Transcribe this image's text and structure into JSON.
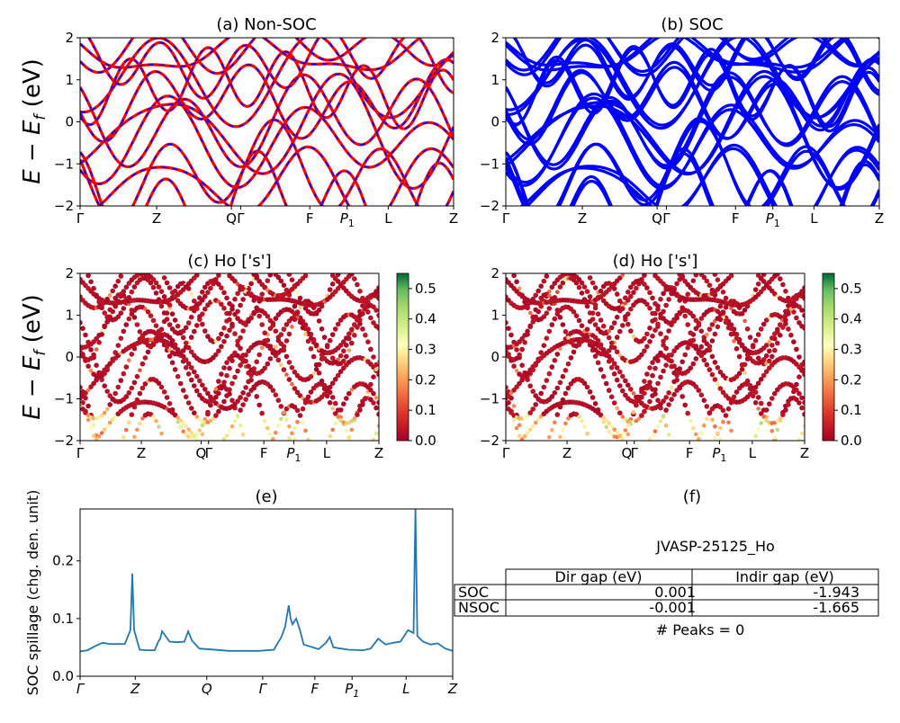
{
  "colors": {
    "nonsoc_line": "#ff0000",
    "nonsoc_dash": "#0000ff",
    "soc_line": "#0000ff",
    "spillage_line": "#1f77b4",
    "colormap": "RdYlGn"
  },
  "chart_data": [
    {
      "panel": "a",
      "type": "line",
      "title": "(a) Non-SOC",
      "ylabel": "E − E_f (eV)",
      "ylim": [
        -2,
        2
      ],
      "yticks": [
        "2",
        "1",
        "0",
        "−1",
        "−2"
      ],
      "kpath_labels": [
        "Γ",
        "Z",
        "Q",
        "Γ",
        "F",
        "P1",
        "L",
        "Z"
      ],
      "kpath_positions": [
        0,
        0.205,
        0.405,
        0.43,
        0.615,
        0.715,
        0.825,
        1.0
      ],
      "series": [
        {
          "name": "",
          "x": [
            0,
            0.1,
            0.2,
            0.3,
            0.4,
            0.5,
            0.6,
            0.7,
            0.8,
            0.9,
            1.0
          ],
          "values": [
            0.3,
            -0.4,
            -1.1,
            -1.3,
            -0.6,
            0.2,
            -0.9,
            -1.5,
            -1.0,
            -0.2,
            0.3
          ]
        },
        {
          "name": "",
          "x": [
            0,
            0.1,
            0.2,
            0.3,
            0.4,
            0.5,
            0.6,
            0.7,
            0.8,
            0.9,
            1.0
          ],
          "values": [
            1.4,
            0.8,
            0.9,
            0.3,
            1.2,
            1.8,
            0.1,
            0.4,
            0.9,
            0.0,
            0.7
          ]
        },
        {
          "name": "",
          "x": [
            0,
            0.1,
            0.2,
            0.3,
            0.4,
            0.5,
            0.6,
            0.7,
            0.8,
            0.9,
            1.0
          ],
          "values": [
            1.9,
            1.5,
            1.6,
            1.2,
            1.9,
            0.9,
            1.0,
            1.8,
            1.5,
            1.2,
            1.8
          ]
        },
        {
          "name": "",
          "x": [
            0,
            0.1,
            0.2,
            0.3,
            0.4,
            0.5,
            0.6,
            0.7,
            0.8,
            0.9,
            1.0
          ],
          "values": [
            -0.4,
            -1.2,
            -0.3,
            -0.9,
            0.1,
            -0.5,
            -1.8,
            -0.8,
            -1.6,
            -1.2,
            -0.6
          ]
        }
      ]
    },
    {
      "panel": "b",
      "type": "line",
      "title": "(b) SOC",
      "ylim": [
        -2,
        2
      ],
      "yticks": [
        "2",
        "1",
        "0",
        "−1",
        "−2"
      ],
      "kpath_labels": [
        "Γ",
        "Z",
        "Q",
        "Γ",
        "F",
        "P1",
        "L",
        "Z"
      ],
      "kpath_positions": [
        0,
        0.205,
        0.405,
        0.43,
        0.615,
        0.715,
        0.825,
        1.0
      ],
      "series": [
        {
          "name": "",
          "x": [
            0,
            0.1,
            0.2,
            0.3,
            0.4,
            0.5,
            0.6,
            0.7,
            0.8,
            0.9,
            1.0
          ],
          "values": [
            0.3,
            -0.4,
            -1.1,
            -1.3,
            -0.6,
            0.2,
            -0.9,
            -1.5,
            -1.0,
            -0.2,
            0.3
          ]
        },
        {
          "name": "",
          "x": [
            0,
            0.1,
            0.2,
            0.3,
            0.4,
            0.5,
            0.6,
            0.7,
            0.8,
            0.9,
            1.0
          ],
          "values": [
            1.4,
            0.8,
            0.9,
            0.3,
            1.2,
            1.8,
            0.1,
            0.4,
            0.9,
            0.0,
            0.7
          ]
        },
        {
          "name": "",
          "x": [
            0,
            0.1,
            0.2,
            0.3,
            0.4,
            0.5,
            0.6,
            0.7,
            0.8,
            0.9,
            1.0
          ],
          "values": [
            1.9,
            1.5,
            1.6,
            1.2,
            1.9,
            0.9,
            1.0,
            1.8,
            1.5,
            1.2,
            1.8
          ]
        },
        {
          "name": "",
          "x": [
            0,
            0.1,
            0.2,
            0.3,
            0.4,
            0.5,
            0.6,
            0.7,
            0.8,
            0.9,
            1.0
          ],
          "values": [
            -0.4,
            -1.2,
            -0.3,
            -0.9,
            0.1,
            -0.5,
            -1.8,
            -0.8,
            -1.6,
            -1.2,
            -0.6
          ]
        }
      ]
    },
    {
      "panel": "c",
      "type": "scatter",
      "title": "(c)  Ho ['s']",
      "ylabel": "E − E_f (eV)",
      "ylim": [
        -2,
        2
      ],
      "yticks": [
        "2",
        "1",
        "0",
        "−1",
        "−2"
      ],
      "kpath_labels": [
        "Γ",
        "Z",
        "Q",
        "Γ",
        "F",
        "P1",
        "L",
        "Z"
      ],
      "kpath_positions": [
        0,
        0.205,
        0.405,
        0.43,
        0.615,
        0.715,
        0.825,
        1.0
      ],
      "colorbar_ticks": [
        "0.5",
        "0.4",
        "0.3",
        "0.2",
        "0.1",
        "0.0"
      ],
      "colorbar_range": [
        0.0,
        0.55
      ]
    },
    {
      "panel": "d",
      "type": "scatter",
      "title": "(d) Ho ['s']",
      "ylim": [
        -2,
        2
      ],
      "yticks": [
        "2",
        "1",
        "0",
        "−1",
        "−2"
      ],
      "kpath_labels": [
        "Γ",
        "Z",
        "Q",
        "Γ",
        "F",
        "P1",
        "L",
        "Z"
      ],
      "kpath_positions": [
        0,
        0.205,
        0.405,
        0.43,
        0.615,
        0.715,
        0.825,
        1.0
      ],
      "colorbar_ticks": [
        "0.5",
        "0.4",
        "0.3",
        "0.2",
        "0.1",
        "0.0"
      ],
      "colorbar_range": [
        0.0,
        0.55
      ]
    },
    {
      "panel": "e",
      "type": "line",
      "title": "(e)",
      "ylabel": "SOC spillage (chg. den. unit)",
      "ylim": [
        0.0,
        0.29
      ],
      "yticks": [
        "0.2",
        "0.1",
        "0.0"
      ],
      "kpath_labels": [
        "Γ",
        "Z",
        "Q",
        "Γ",
        "F",
        "P1",
        "L",
        "Z"
      ],
      "kpath_positions": [
        0,
        0.148,
        0.34,
        0.49,
        0.63,
        0.73,
        0.875,
        1.0
      ],
      "series": [
        {
          "name": "",
          "x": [
            0,
            0.02,
            0.04,
            0.06,
            0.08,
            0.1,
            0.12,
            0.135,
            0.14,
            0.145,
            0.16,
            0.18,
            0.2,
            0.21,
            0.215,
            0.22,
            0.24,
            0.26,
            0.28,
            0.29,
            0.295,
            0.3,
            0.32,
            0.4,
            0.48,
            0.52,
            0.54,
            0.55,
            0.56,
            0.565,
            0.57,
            0.58,
            0.59,
            0.6,
            0.64,
            0.66,
            0.67,
            0.68,
            0.72,
            0.76,
            0.78,
            0.8,
            0.82,
            0.84,
            0.86,
            0.88,
            0.895,
            0.9,
            0.905,
            0.92,
            0.94,
            0.96,
            0.98,
            1.0
          ],
          "values": [
            0.043,
            0.045,
            0.052,
            0.058,
            0.056,
            0.056,
            0.056,
            0.08,
            0.178,
            0.08,
            0.046,
            0.045,
            0.045,
            0.06,
            0.065,
            0.078,
            0.06,
            0.059,
            0.06,
            0.078,
            0.07,
            0.062,
            0.048,
            0.044,
            0.044,
            0.046,
            0.068,
            0.085,
            0.123,
            0.1,
            0.09,
            0.1,
            0.08,
            0.055,
            0.047,
            0.058,
            0.068,
            0.05,
            0.046,
            0.045,
            0.048,
            0.065,
            0.055,
            0.058,
            0.06,
            0.08,
            0.075,
            0.29,
            0.07,
            0.06,
            0.055,
            0.057,
            0.048,
            0.044
          ]
        }
      ]
    }
  ],
  "table": {
    "title": "(f)",
    "subtitle": "JVASP-25125_Ho",
    "headers": [
      "Dir gap (eV)",
      "Indir gap (eV)"
    ],
    "rows": [
      {
        "label": "SOC",
        "dir": "0.001",
        "indir": "-1.943"
      },
      {
        "label": "NSOC",
        "dir": "-0.001",
        "indir": "-1.665"
      }
    ],
    "peaks": "# Peaks = 0"
  }
}
